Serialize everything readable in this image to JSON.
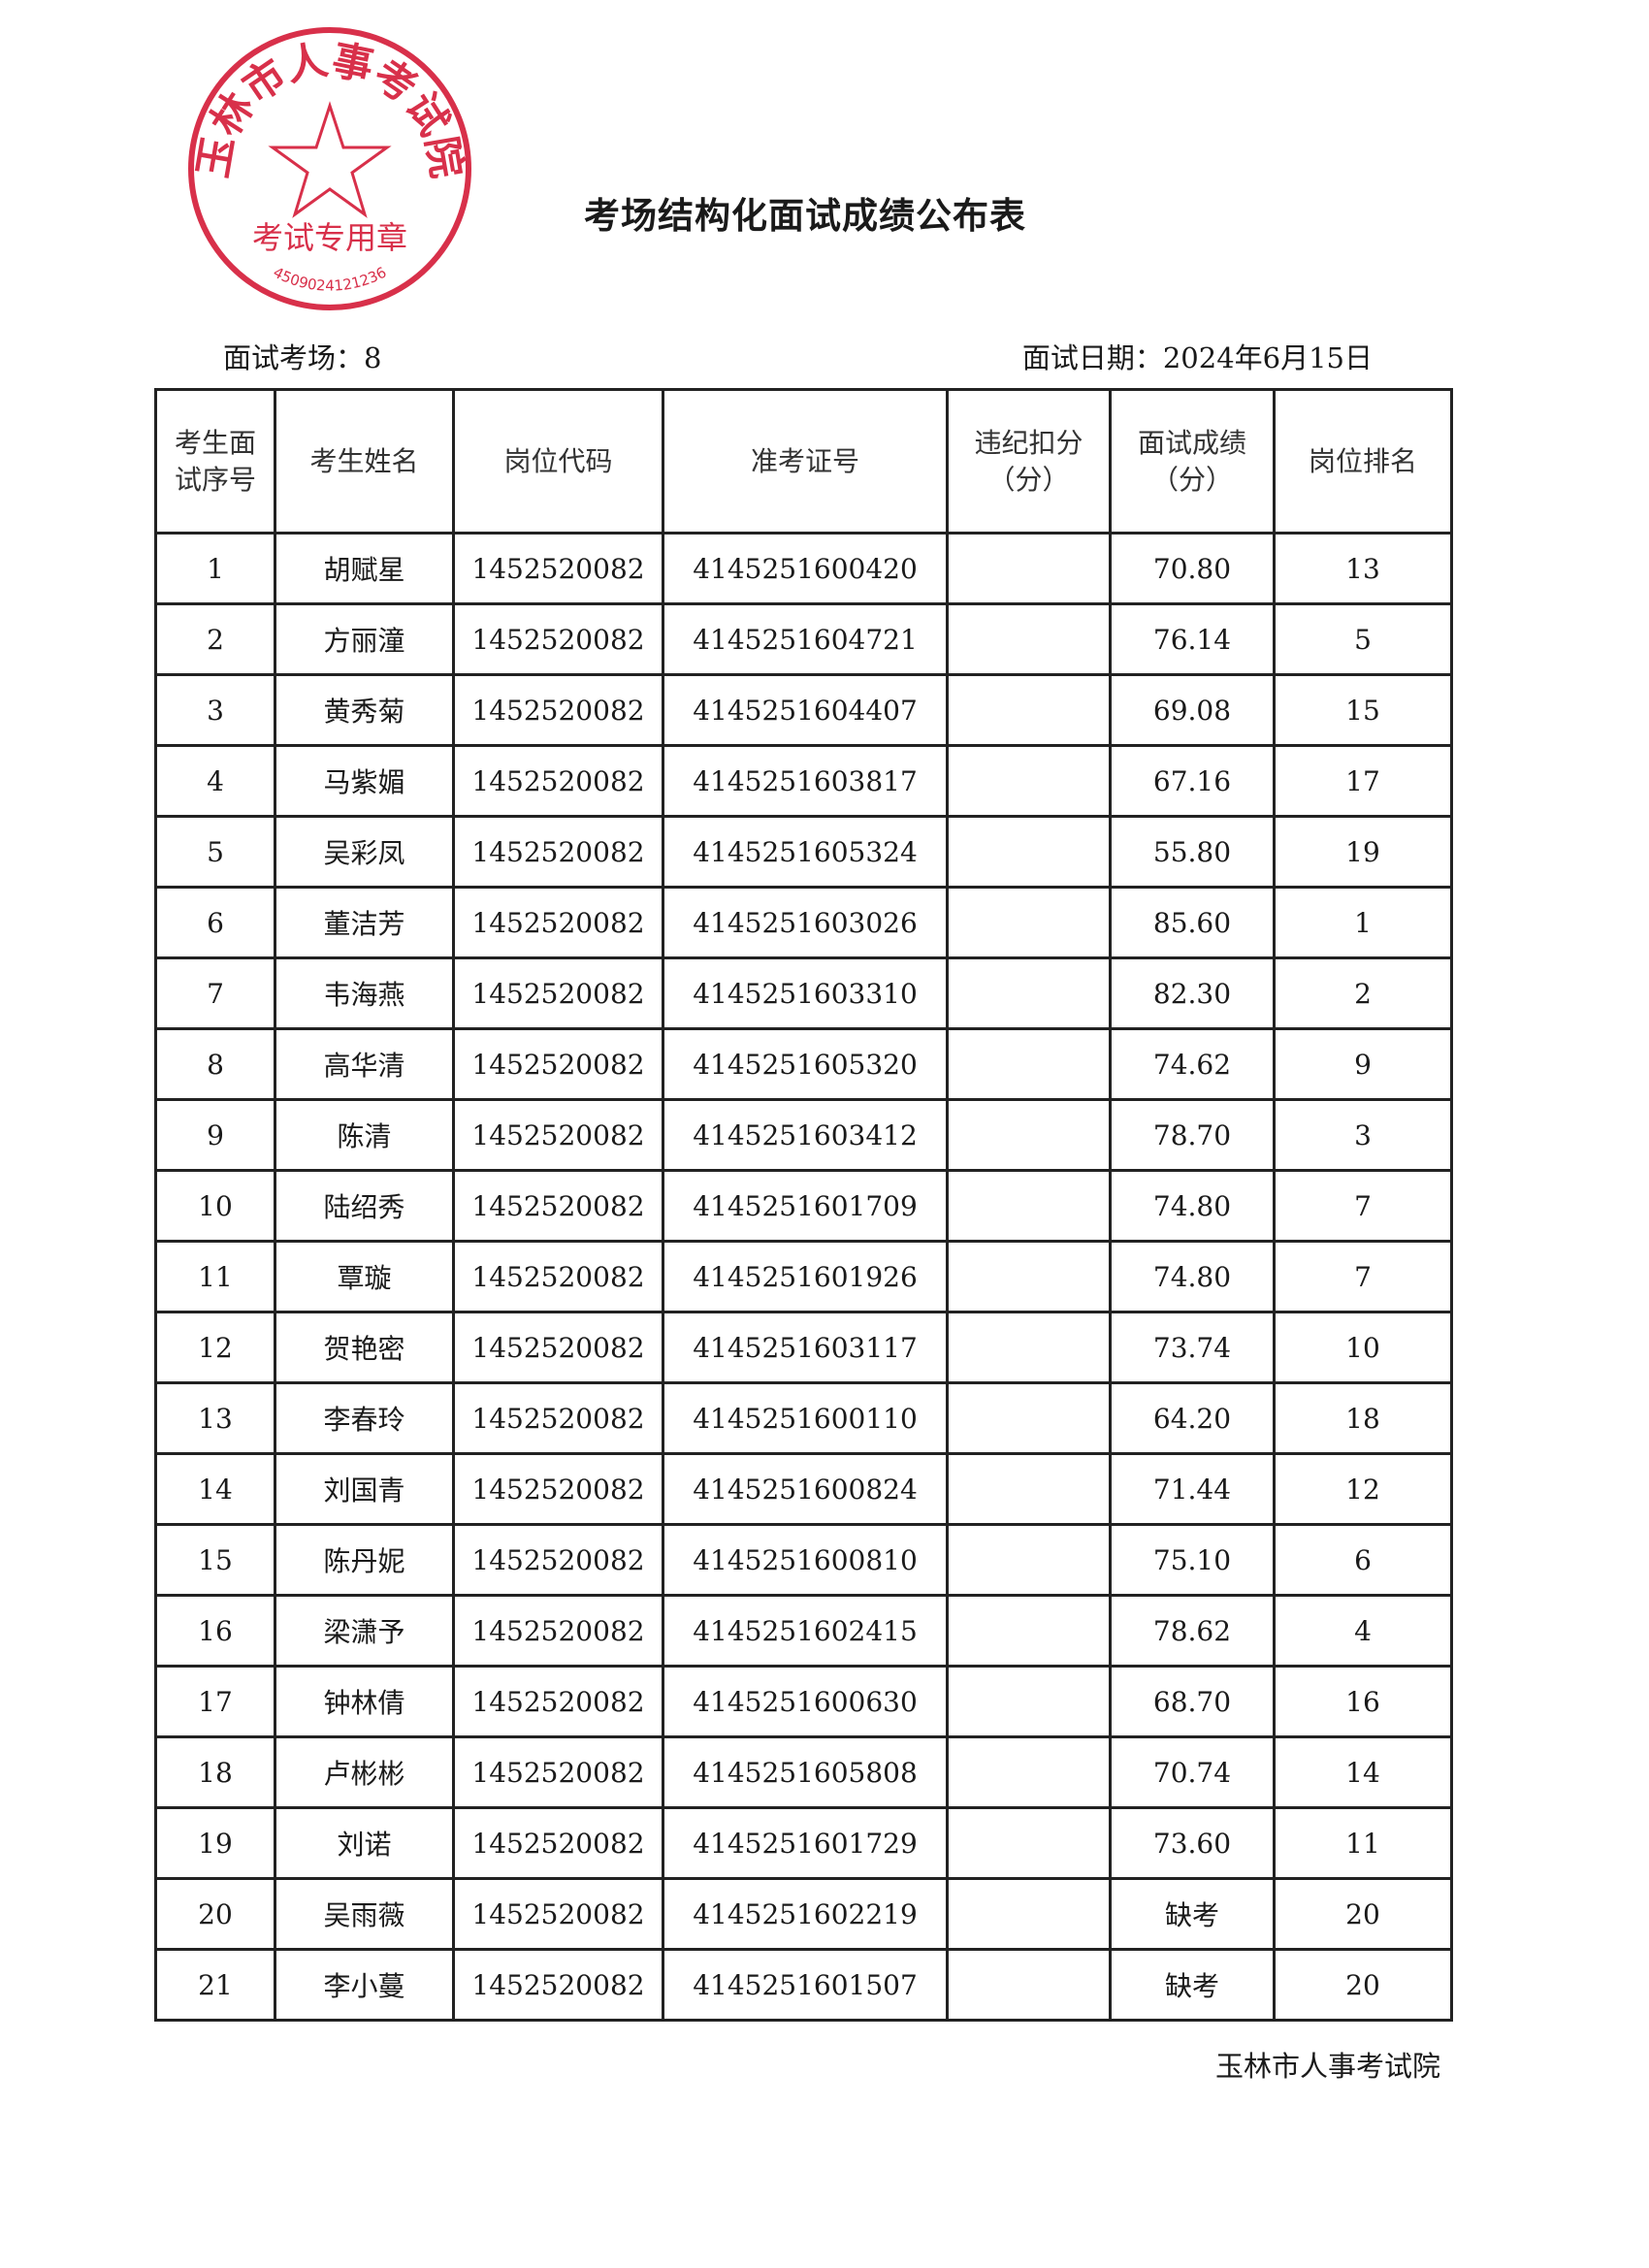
{
  "title": "考场结构化面试成绩公布表",
  "exam_room_label": "面试考场：8",
  "exam_date_label": "面试日期：2024年6月15日",
  "headers": [
    "考生面试序号",
    "考生姓名",
    "岗位代码",
    "准考证号",
    "违纪扣分（分）",
    "面试成绩（分）",
    "岗位排名"
  ],
  "rows": [
    {
      "seq": "1",
      "name": "胡赋星",
      "post": "1452520082",
      "ticket": "4145251600420",
      "deduct": "",
      "score": "70.80",
      "rank": "13"
    },
    {
      "seq": "2",
      "name": "方丽潼",
      "post": "1452520082",
      "ticket": "4145251604721",
      "deduct": "",
      "score": "76.14",
      "rank": "5"
    },
    {
      "seq": "3",
      "name": "黄秀菊",
      "post": "1452520082",
      "ticket": "4145251604407",
      "deduct": "",
      "score": "69.08",
      "rank": "15"
    },
    {
      "seq": "4",
      "name": "马紫媚",
      "post": "1452520082",
      "ticket": "4145251603817",
      "deduct": "",
      "score": "67.16",
      "rank": "17"
    },
    {
      "seq": "5",
      "name": "吴彩凤",
      "post": "1452520082",
      "ticket": "4145251605324",
      "deduct": "",
      "score": "55.80",
      "rank": "19"
    },
    {
      "seq": "6",
      "name": "董洁芳",
      "post": "1452520082",
      "ticket": "4145251603026",
      "deduct": "",
      "score": "85.60",
      "rank": "1"
    },
    {
      "seq": "7",
      "name": "韦海燕",
      "post": "1452520082",
      "ticket": "4145251603310",
      "deduct": "",
      "score": "82.30",
      "rank": "2"
    },
    {
      "seq": "8",
      "name": "高华清",
      "post": "1452520082",
      "ticket": "4145251605320",
      "deduct": "",
      "score": "74.62",
      "rank": "9"
    },
    {
      "seq": "9",
      "name": "陈清",
      "post": "1452520082",
      "ticket": "4145251603412",
      "deduct": "",
      "score": "78.70",
      "rank": "3"
    },
    {
      "seq": "10",
      "name": "陆绍秀",
      "post": "1452520082",
      "ticket": "4145251601709",
      "deduct": "",
      "score": "74.80",
      "rank": "7"
    },
    {
      "seq": "11",
      "name": "覃璇",
      "post": "1452520082",
      "ticket": "4145251601926",
      "deduct": "",
      "score": "74.80",
      "rank": "7"
    },
    {
      "seq": "12",
      "name": "贺艳密",
      "post": "1452520082",
      "ticket": "4145251603117",
      "deduct": "",
      "score": "73.74",
      "rank": "10"
    },
    {
      "seq": "13",
      "name": "李春玲",
      "post": "1452520082",
      "ticket": "4145251600110",
      "deduct": "",
      "score": "64.20",
      "rank": "18"
    },
    {
      "seq": "14",
      "name": "刘国青",
      "post": "1452520082",
      "ticket": "4145251600824",
      "deduct": "",
      "score": "71.44",
      "rank": "12"
    },
    {
      "seq": "15",
      "name": "陈丹妮",
      "post": "1452520082",
      "ticket": "4145251600810",
      "deduct": "",
      "score": "75.10",
      "rank": "6"
    },
    {
      "seq": "16",
      "name": "梁潇予",
      "post": "1452520082",
      "ticket": "4145251602415",
      "deduct": "",
      "score": "78.62",
      "rank": "4"
    },
    {
      "seq": "17",
      "name": "钟林倩",
      "post": "1452520082",
      "ticket": "4145251600630",
      "deduct": "",
      "score": "68.70",
      "rank": "16"
    },
    {
      "seq": "18",
      "name": "卢彬彬",
      "post": "1452520082",
      "ticket": "4145251605808",
      "deduct": "",
      "score": "70.74",
      "rank": "14"
    },
    {
      "seq": "19",
      "name": "刘诺",
      "post": "1452520082",
      "ticket": "4145251601729",
      "deduct": "",
      "score": "73.60",
      "rank": "11"
    },
    {
      "seq": "20",
      "name": "吴雨薇",
      "post": "1452520082",
      "ticket": "4145251602219",
      "deduct": "",
      "score": "缺考",
      "rank": "20"
    },
    {
      "seq": "21",
      "name": "李小蔓",
      "post": "1452520082",
      "ticket": "4145251601507",
      "deduct": "",
      "score": "缺考",
      "rank": "20"
    }
  ],
  "footer": "玉林市人事考试院",
  "stamp": {
    "outer_text": "玉林市人事考试院",
    "inner_text": "考试专用章",
    "code": "4509024121236",
    "color": "#d8304a"
  }
}
